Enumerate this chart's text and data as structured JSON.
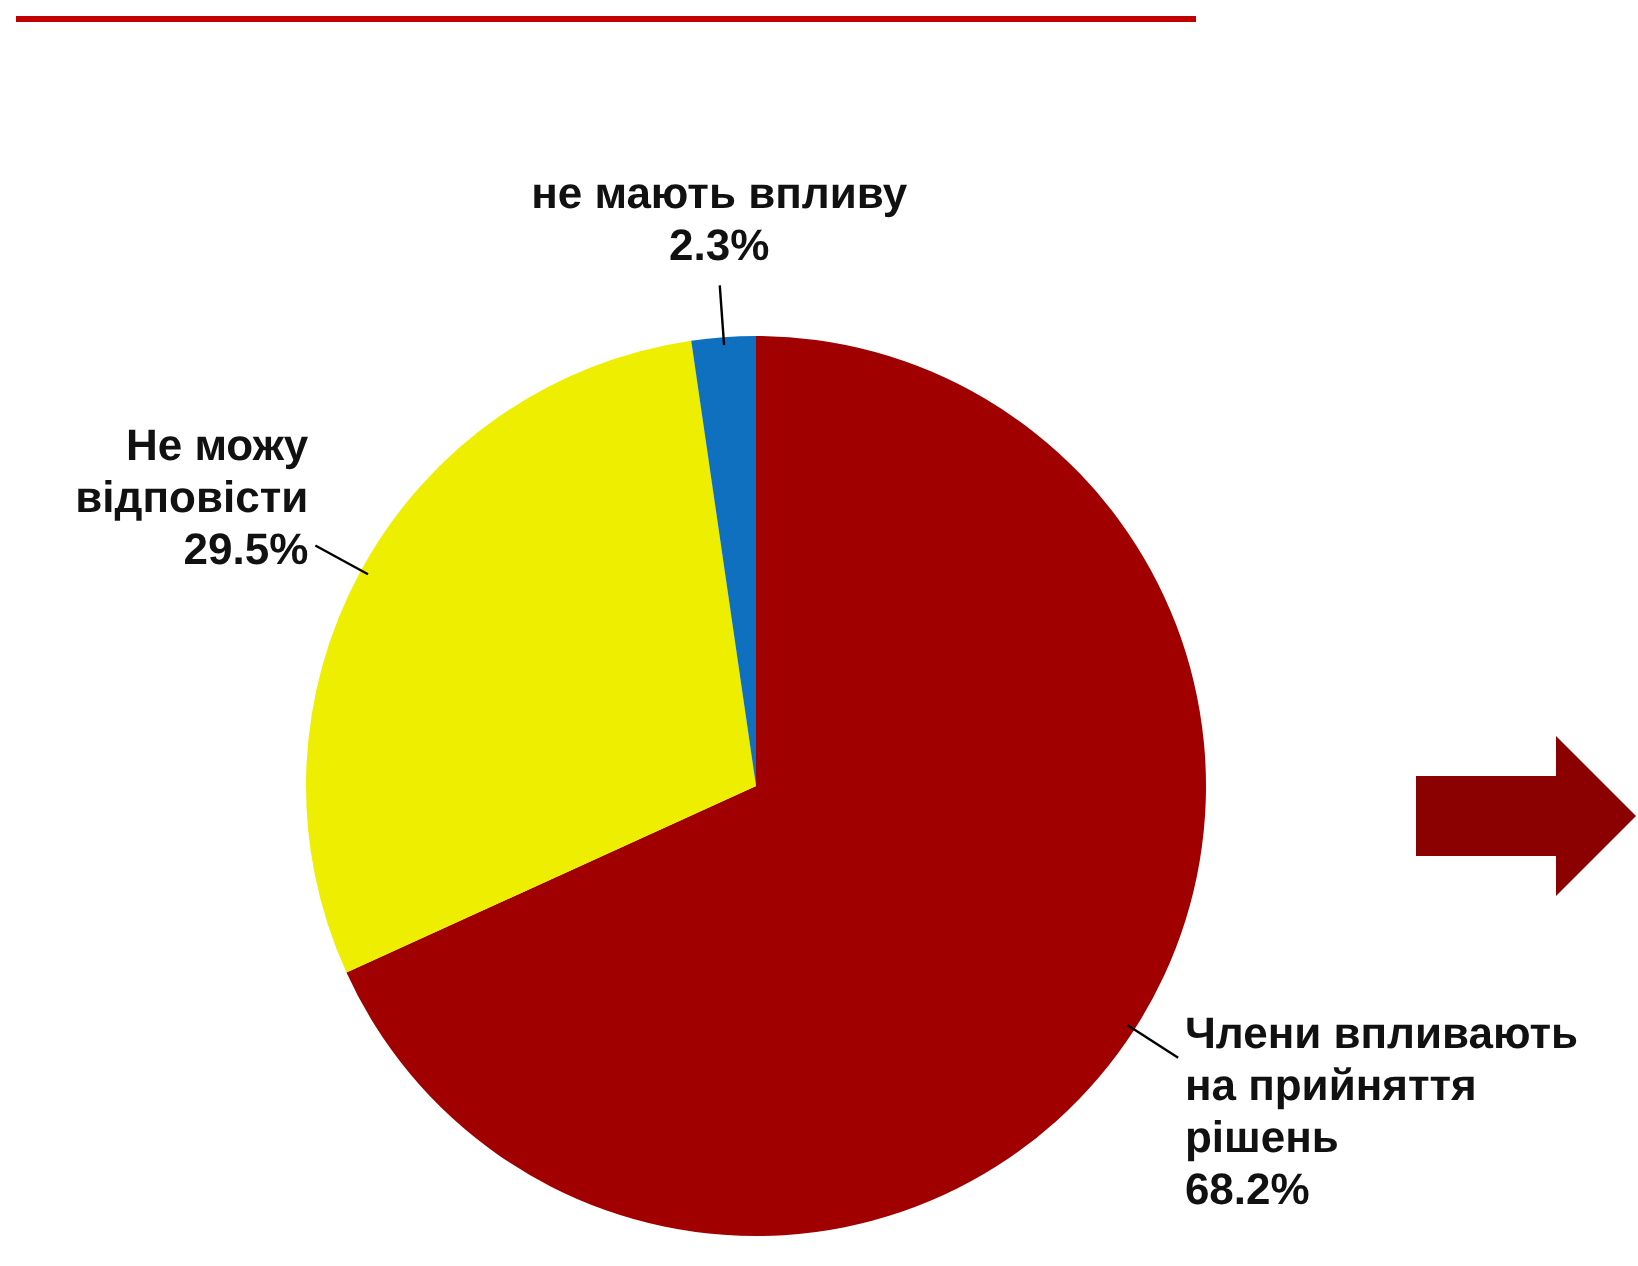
{
  "chart_data": {
    "type": "pie",
    "categories": [
      "Члени впливають на прийняття рішень",
      "Не можу відповісти",
      "не мають впливу"
    ],
    "values": [
      68.2,
      29.5,
      2.3
    ],
    "colors": [
      "#a00000",
      "#eeee00",
      "#1070c0"
    ],
    "value_labels": [
      "68.2%",
      "29.5%",
      "2.3%"
    ],
    "legend": false
  }
}
